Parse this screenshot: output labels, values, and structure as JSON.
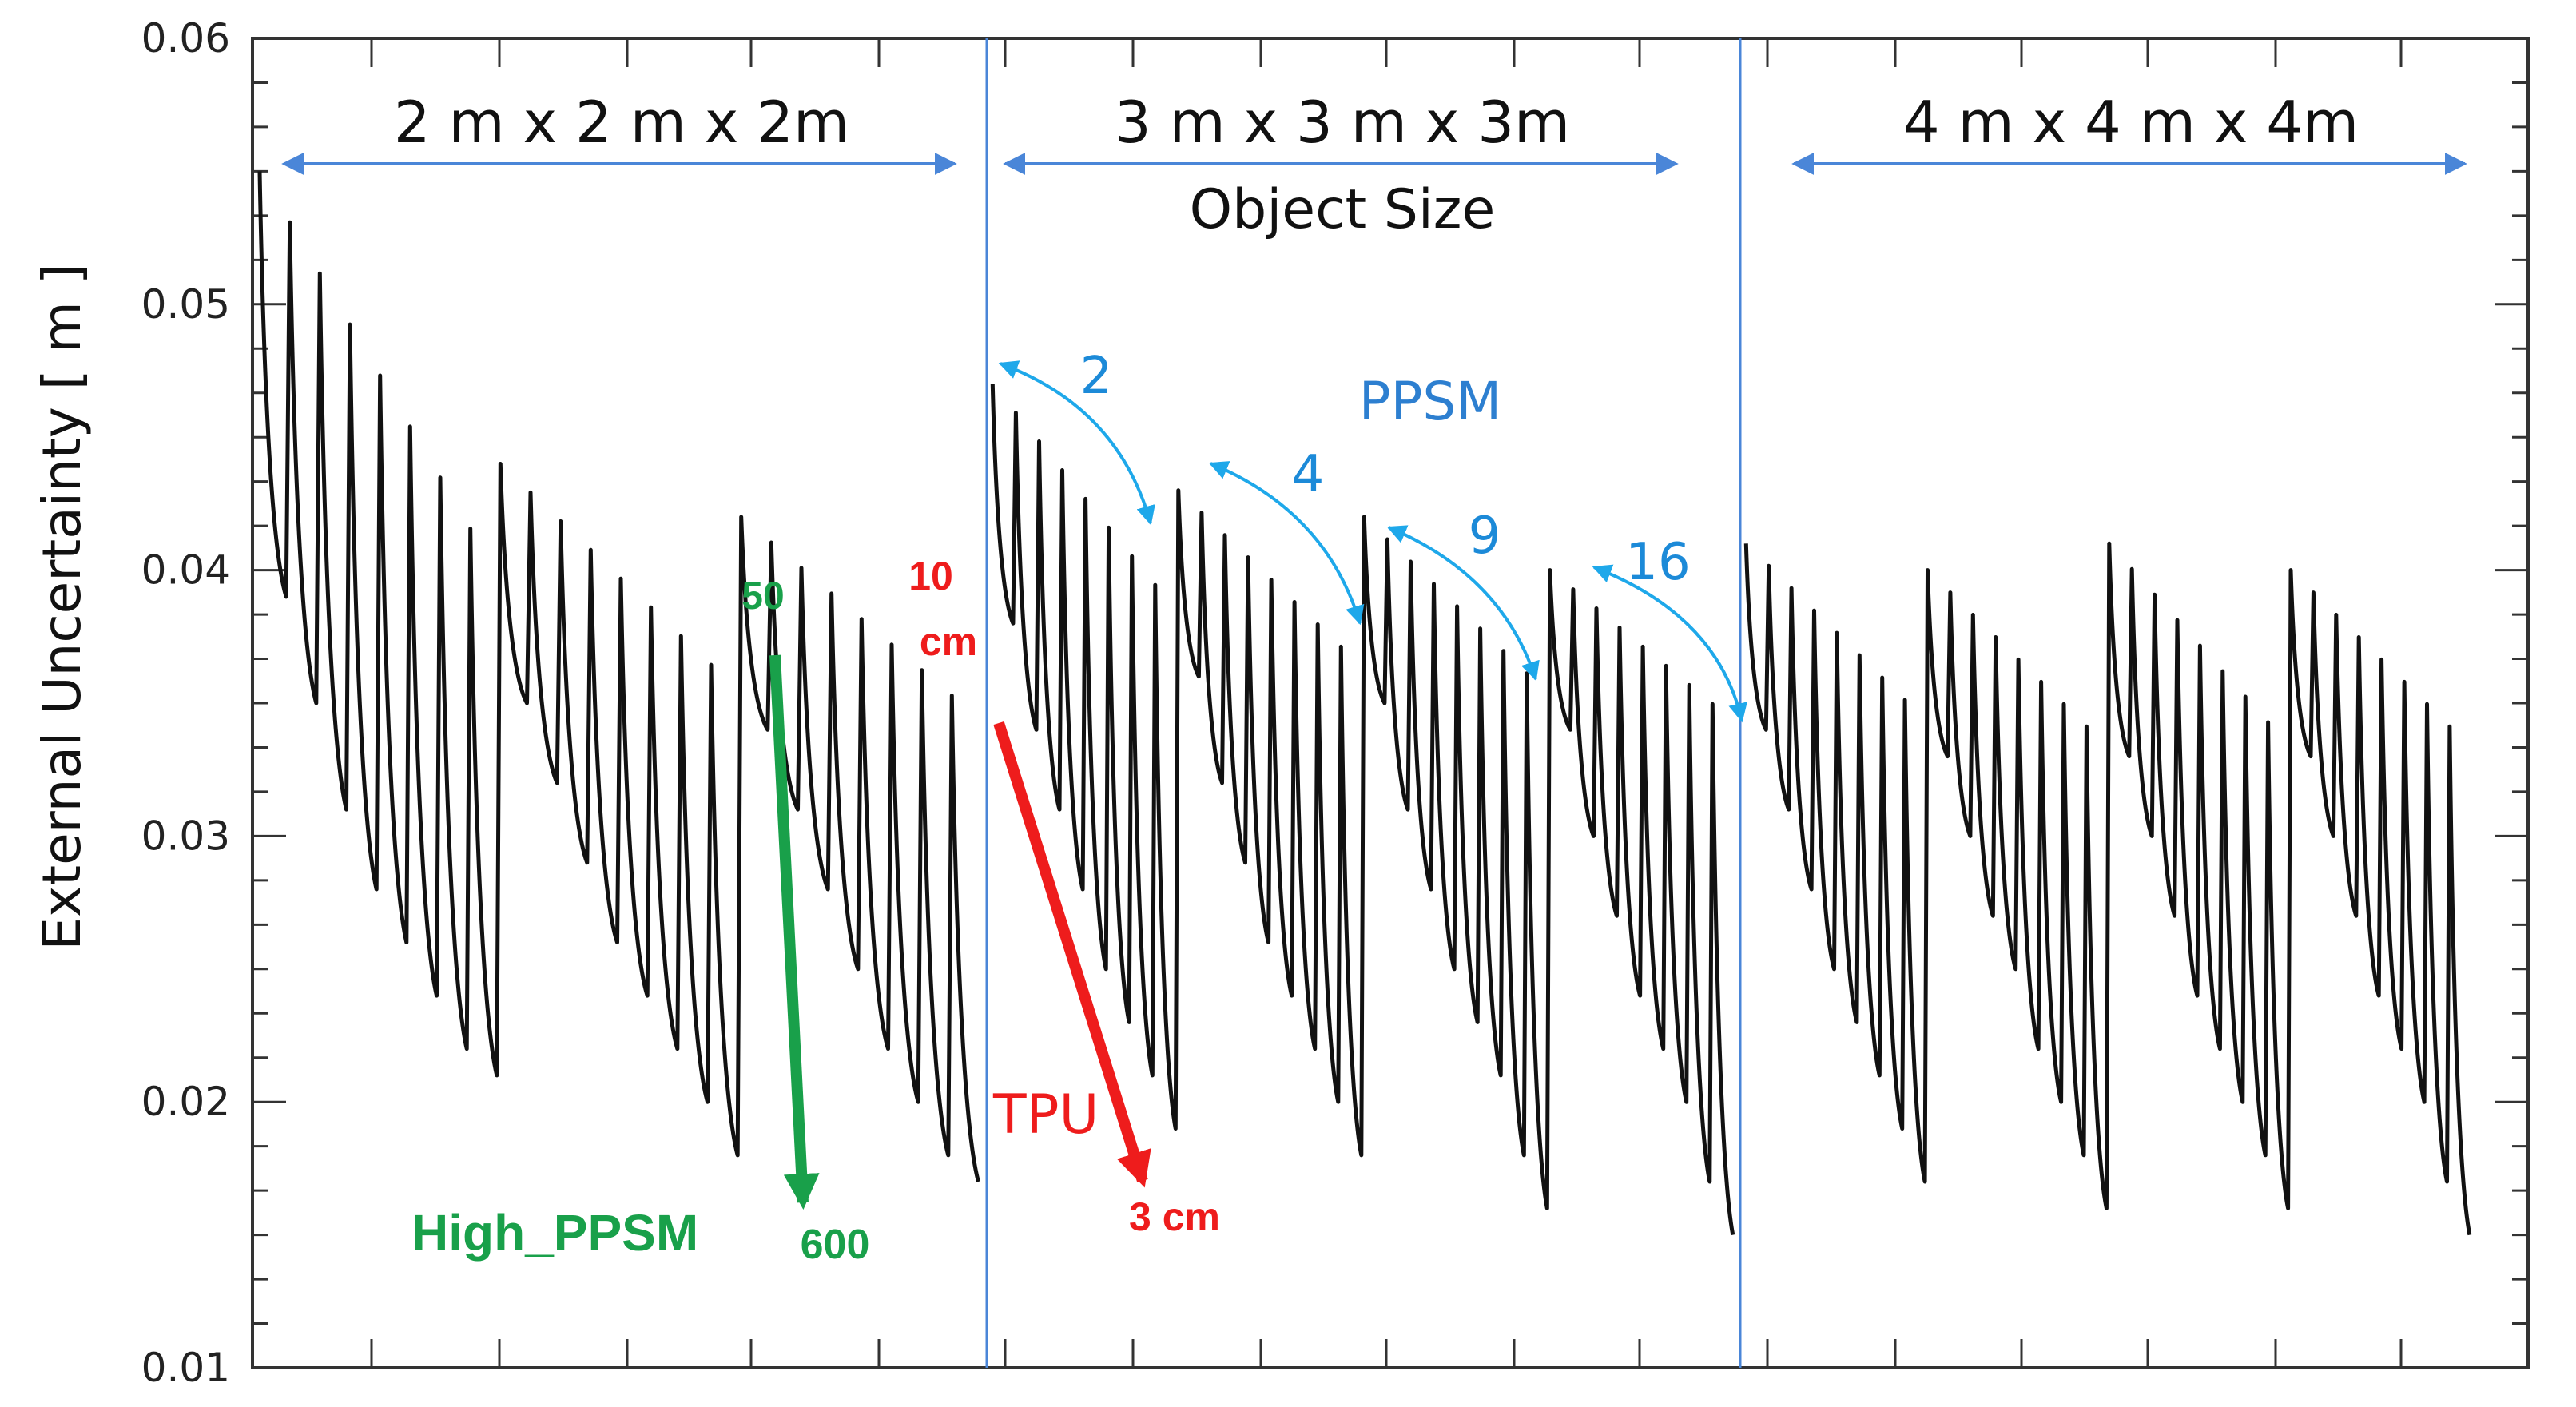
{
  "chart_data": {
    "type": "line",
    "title": "",
    "xlabel": "",
    "ylabel": "External Uncertainty [ m ]",
    "ylim": [
      0.01,
      0.06
    ],
    "yticks": [
      "0.01",
      "0.02",
      "0.03",
      "0.04",
      "0.05",
      "0.06"
    ],
    "ytick_values": [
      0.01,
      0.02,
      0.03,
      0.04,
      0.05,
      0.06
    ],
    "axis_name": "Object Size",
    "grid": false,
    "series": [
      {
        "name": "2 m x 2 m x 2m",
        "groups": [
          {
            "peak": 0.055,
            "lows": [
              0.039,
              0.035,
              0.031,
              0.028,
              0.026,
              0.024,
              0.022,
              0.021
            ]
          },
          {
            "peak": 0.044,
            "lows": [
              0.035,
              0.032,
              0.029,
              0.026,
              0.024,
              0.022,
              0.02,
              0.018
            ]
          },
          {
            "peak": 0.042,
            "lows": [
              0.034,
              0.031,
              0.028,
              0.025,
              0.022,
              0.02,
              0.018,
              0.017
            ]
          }
        ]
      },
      {
        "name": "3 m x 3 m x 3m",
        "groups": [
          {
            "peak": 0.047,
            "lows": [
              0.038,
              0.034,
              0.031,
              0.028,
              0.025,
              0.023,
              0.021,
              0.019
            ]
          },
          {
            "peak": 0.043,
            "lows": [
              0.036,
              0.032,
              0.029,
              0.026,
              0.024,
              0.022,
              0.02,
              0.018
            ]
          },
          {
            "peak": 0.042,
            "lows": [
              0.035,
              0.031,
              0.028,
              0.025,
              0.023,
              0.021,
              0.018,
              0.016
            ]
          },
          {
            "peak": 0.04,
            "lows": [
              0.034,
              0.03,
              0.027,
              0.024,
              0.022,
              0.02,
              0.017,
              0.015
            ]
          }
        ]
      },
      {
        "name": "4 m x 4 m x 4m",
        "groups": [
          {
            "peak": 0.041,
            "lows": [
              0.034,
              0.031,
              0.028,
              0.025,
              0.023,
              0.021,
              0.019,
              0.017
            ]
          },
          {
            "peak": 0.04,
            "lows": [
              0.033,
              0.03,
              0.027,
              0.025,
              0.022,
              0.02,
              0.018,
              0.016
            ]
          },
          {
            "peak": 0.041,
            "lows": [
              0.033,
              0.03,
              0.027,
              0.024,
              0.022,
              0.02,
              0.018,
              0.016
            ]
          },
          {
            "peak": 0.04,
            "lows": [
              0.033,
              0.03,
              0.027,
              0.024,
              0.022,
              0.02,
              0.017,
              0.015
            ]
          }
        ]
      }
    ],
    "regions": [
      "2 m x 2 m x 2m",
      "3 m x 3 m x 3m",
      "4 m x 4 m x 4m"
    ],
    "annotations": {
      "high_ppsm": {
        "label": "High_PPSM",
        "from": "50",
        "to": "600",
        "color": "#19a04a"
      },
      "tpu": {
        "label": "TPU",
        "from_value": "10",
        "from_unit": "cm",
        "to": "3 cm",
        "color": "#ee1c1c"
      },
      "ppsm": {
        "label": "PPSM",
        "steps": [
          "2",
          "4",
          "9",
          "16"
        ],
        "color": "#1c8ad8"
      }
    }
  }
}
